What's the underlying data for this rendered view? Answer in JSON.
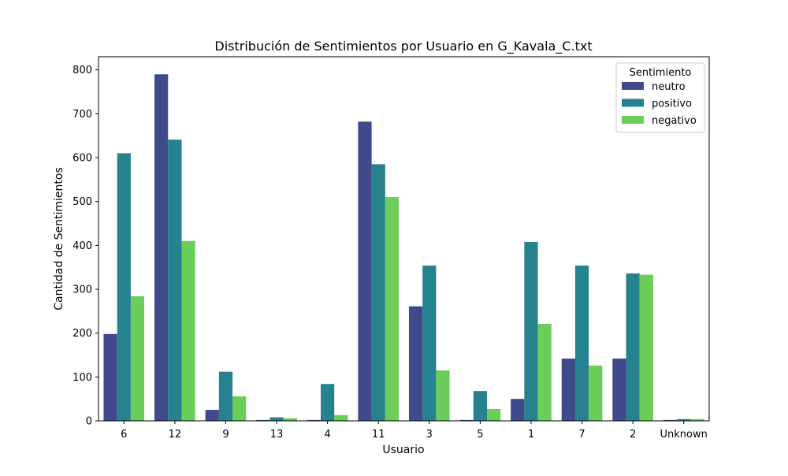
{
  "chart_data": {
    "type": "bar",
    "title": "Distribución de Sentimientos por Usuario en G_Kavala_C.txt",
    "xlabel": "Usuario",
    "ylabel": "Cantidad de Sentimientos",
    "ylim": [
      0,
      830
    ],
    "yticks": [
      0,
      100,
      200,
      300,
      400,
      500,
      600,
      700,
      800
    ],
    "categories": [
      "6",
      "12",
      "9",
      "13",
      "4",
      "11",
      "3",
      "5",
      "1",
      "7",
      "2",
      "Unknown"
    ],
    "legend": {
      "title": "Sentimiento",
      "placement": "top-right"
    },
    "grid": false,
    "series": [
      {
        "name": "neutro",
        "color": "#3e4a89",
        "values": [
          198,
          790,
          25,
          2,
          2,
          682,
          261,
          2,
          50,
          142,
          142,
          2
        ]
      },
      {
        "name": "positivo",
        "color": "#26828e",
        "values": [
          610,
          641,
          112,
          8,
          84,
          585,
          354,
          68,
          408,
          354,
          336,
          4
        ]
      },
      {
        "name": "negativo",
        "color": "#6ccd5a",
        "values": [
          284,
          410,
          56,
          6,
          13,
          510,
          115,
          27,
          221,
          126,
          333,
          4
        ]
      }
    ]
  }
}
